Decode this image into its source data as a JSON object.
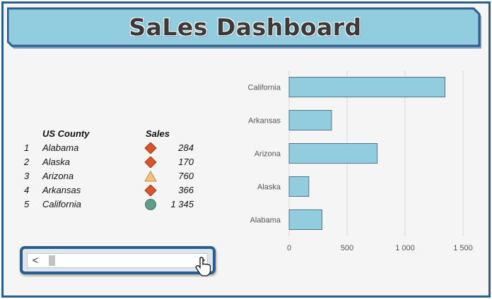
{
  "header": {
    "title": "SaLes Dashboard"
  },
  "table": {
    "col_county": "US County",
    "col_sales": "Sales",
    "rows": [
      {
        "idx": "1",
        "name": "Alabama",
        "sales": "284",
        "icon": "red-diamond-icon"
      },
      {
        "idx": "2",
        "name": "Alaska",
        "sales": "170",
        "icon": "red-diamond-icon"
      },
      {
        "idx": "3",
        "name": "Arizona",
        "sales": "760",
        "icon": "yellow-triangle-icon"
      },
      {
        "idx": "4",
        "name": "Arkansas",
        "sales": "366",
        "icon": "red-diamond-icon"
      },
      {
        "idx": "5",
        "name": "California",
        "sales": "1 345",
        "icon": "green-circle-icon"
      }
    ]
  },
  "scrollbar": {
    "left_arrow": "<",
    "right_arrow": ">"
  },
  "colors": {
    "accent": "#2b5d8e",
    "banner": "#92ccdf",
    "bar": "#92ccdf",
    "diamond": "#d9552c",
    "triangle": "#f2c27e",
    "circle": "#5c9e86"
  },
  "chart_data": {
    "type": "bar",
    "orientation": "horizontal",
    "categories": [
      "California",
      "Arkansas",
      "Arizona",
      "Alaska",
      "Alabama"
    ],
    "values": [
      1345,
      366,
      760,
      170,
      284
    ],
    "xlim": [
      0,
      1500
    ],
    "xticks": [
      0,
      500,
      1000,
      1500
    ],
    "xtick_labels": [
      "0",
      "500",
      "1 000",
      "1 500"
    ],
    "grid": true,
    "legend": "none"
  }
}
